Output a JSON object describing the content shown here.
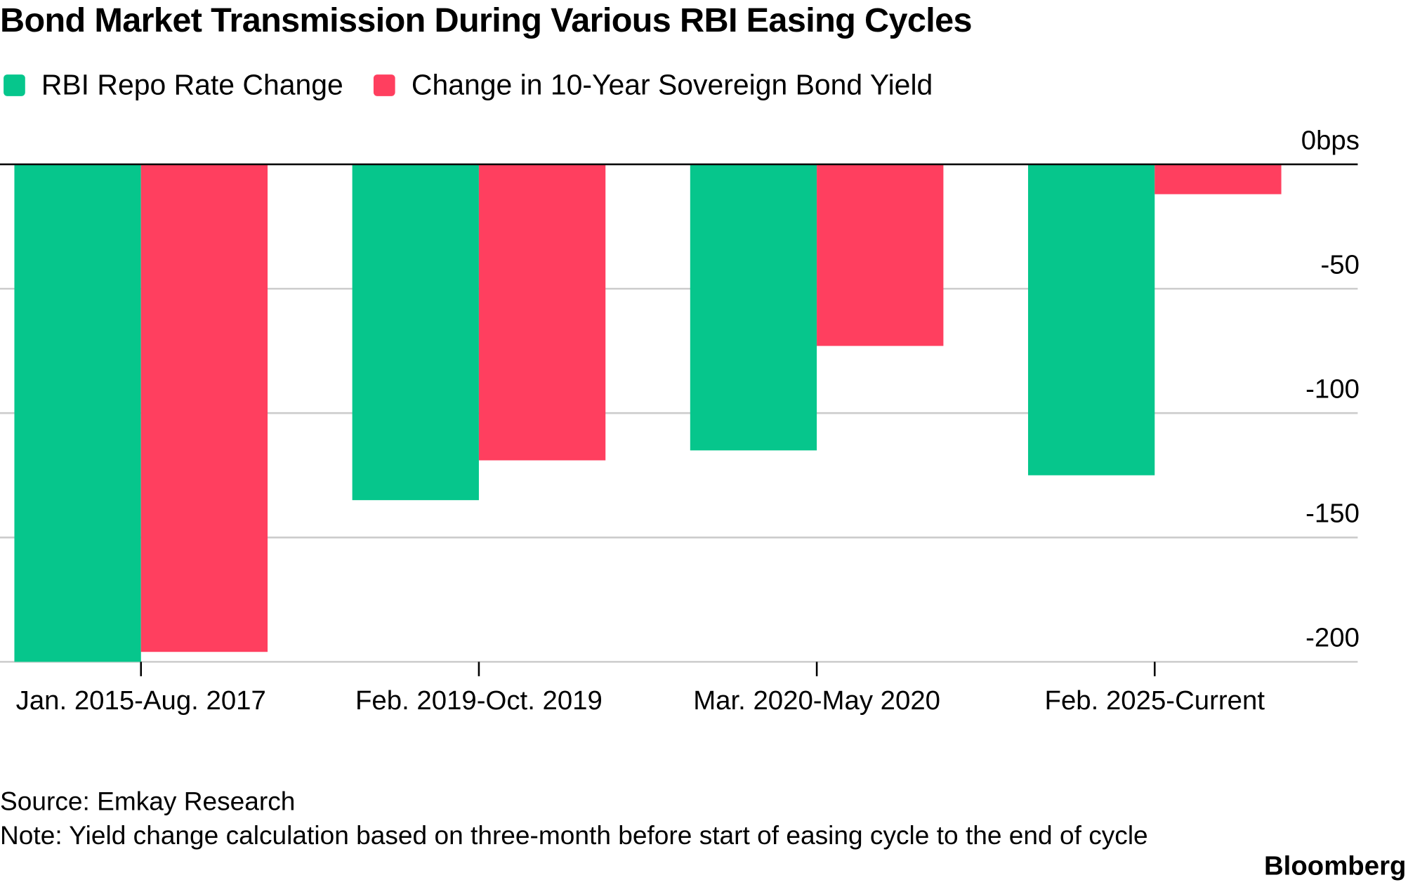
{
  "chart_data": {
    "type": "bar",
    "title": "Bond Market Transmission During Various RBI Easing Cycles",
    "categories": [
      "Jan. 2015-Aug. 2017",
      "Feb. 2019-Oct. 2019",
      "Mar. 2020-May 2020",
      "Feb. 2025-Current"
    ],
    "series": [
      {
        "name": "RBI Repo Rate Change",
        "color": "#06c68c",
        "values": [
          -200,
          -135,
          -115,
          -125
        ]
      },
      {
        "name": "Change in 10-Year Sovereign Bond Yield",
        "color": "#ff3f5f",
        "values": [
          -196,
          -119,
          -73,
          -12
        ]
      }
    ],
    "ylim": [
      -200,
      0
    ],
    "yticks": [
      {
        "value": 0,
        "label": "0bps"
      },
      -50,
      -100,
      -150,
      -200
    ],
    "grid": true,
    "source": "Source: Emkay Research",
    "note": "Note: Yield change calculation based on three-month before start of easing cycle to the end of cycle",
    "brand": "Bloomberg"
  }
}
